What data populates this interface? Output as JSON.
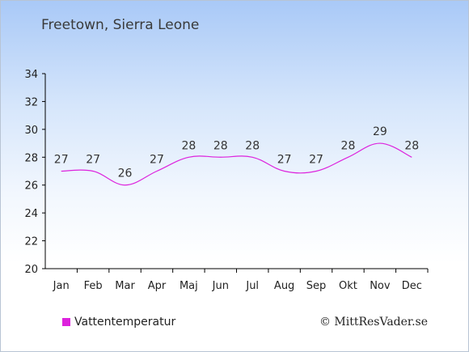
{
  "chart_data": {
    "type": "line",
    "title": "Freetown, Sierra Leone",
    "categories": [
      "Jan",
      "Feb",
      "Mar",
      "Apr",
      "Maj",
      "Jun",
      "Jul",
      "Aug",
      "Sep",
      "Okt",
      "Nov",
      "Dec"
    ],
    "series": [
      {
        "name": "Vattentemperatur",
        "values": [
          27,
          27,
          26,
          27,
          28,
          28,
          28,
          27,
          27,
          28,
          29,
          28
        ],
        "color": "#dd22dd"
      }
    ],
    "y_ticks": [
      20,
      22,
      24,
      26,
      28,
      30,
      32,
      34
    ],
    "ylim": [
      20,
      34
    ],
    "grid": false,
    "legend_position": "bottom-left"
  },
  "copyright": "© MittResVader.se"
}
